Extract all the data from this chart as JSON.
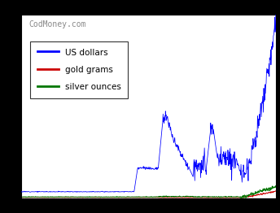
{
  "legend_labels": [
    "US dollars",
    "gold grams",
    "silver ounces"
  ],
  "legend_colors": [
    "#0000ff",
    "#cc0000",
    "#007700"
  ],
  "background_color": "#ffffff",
  "outer_background": "#000000",
  "n_points": 740,
  "watermark": "CodMoney.com",
  "ylim": [
    0,
    80
  ],
  "ytick_count": 10,
  "legend_fontsize": 7.5,
  "watermark_fontsize": 7
}
